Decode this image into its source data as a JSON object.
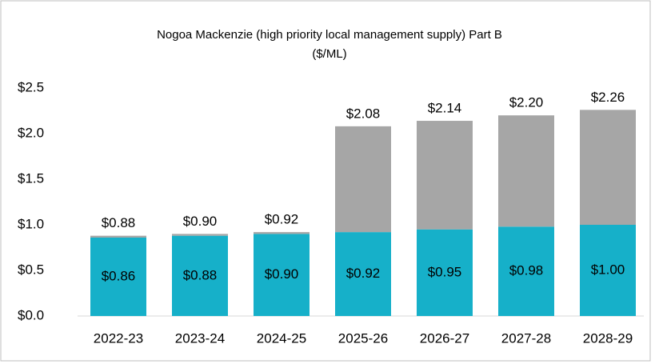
{
  "chart_data": {
    "type": "stacked_bar",
    "title": "Nogoa Mackenzie (high priority local management supply) Part B",
    "subtitle": "($/ML)",
    "categories": [
      "2022-23",
      "2023-24",
      "2024-25",
      "2025-26",
      "2026-27",
      "2027-28",
      "2028-29"
    ],
    "series": [
      {
        "color": "#16b0c9",
        "values": [
          0.86,
          0.88,
          0.9,
          0.92,
          0.95,
          0.98,
          1.0
        ],
        "value_labels": [
          "$0.86",
          "$0.88",
          "$0.90",
          "$0.92",
          "$0.95",
          "$0.98",
          "$1.00"
        ]
      },
      {
        "color": "#a6a6a6",
        "values": [
          0.02,
          0.02,
          0.02,
          1.16,
          1.19,
          1.22,
          1.26
        ]
      }
    ],
    "totals": [
      0.88,
      0.9,
      0.92,
      2.08,
      2.14,
      2.2,
      2.26
    ],
    "total_labels": [
      "$0.88",
      "$0.90",
      "$0.92",
      "$2.08",
      "$2.14",
      "$2.20",
      "$2.26"
    ],
    "ylim": [
      0,
      2.5
    ],
    "yticks": [
      {
        "value": 0,
        "label": "$0.0"
      },
      {
        "value": 0.5,
        "label": "$0.5"
      },
      {
        "value": 1,
        "label": "$1.0"
      },
      {
        "value": 1.5,
        "label": "$1.5"
      },
      {
        "value": 2,
        "label": "$2.0"
      },
      {
        "value": 2.5,
        "label": "$2.5"
      }
    ],
    "grid": false
  }
}
